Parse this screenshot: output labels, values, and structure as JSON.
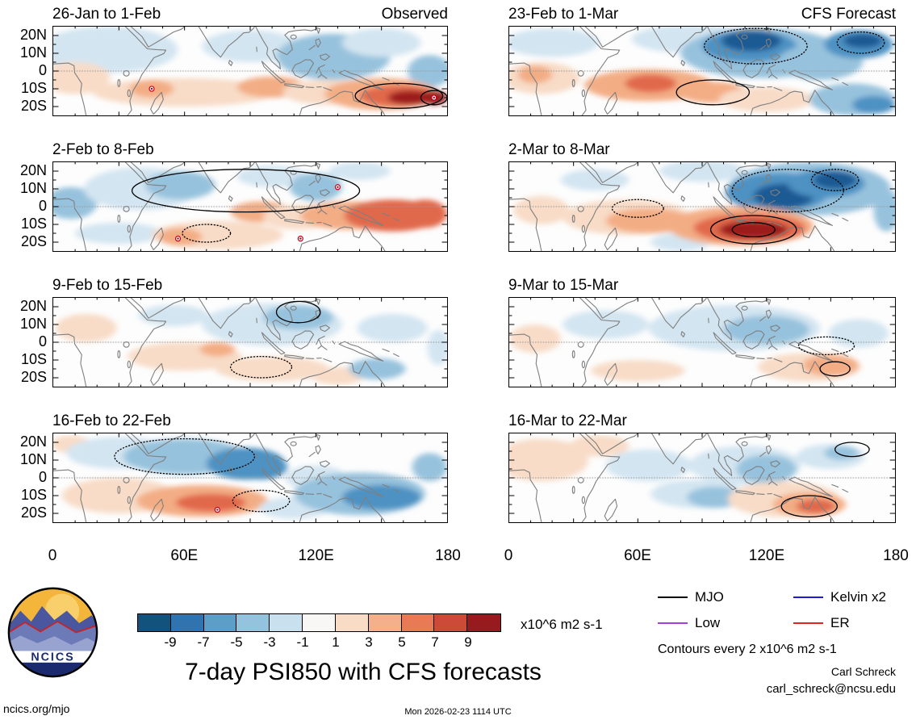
{
  "chart_data": {
    "type": "heatmap",
    "title": "7-day PSI850 with CFS forecasts",
    "units_label": "x10^6 m2 s-1",
    "contour_note": "Contours every 2 x10^6 m2 s-1",
    "columns": [
      {
        "label": "Observed"
      },
      {
        "label": "CFS Forecast"
      }
    ],
    "x_ticks": [
      "0",
      "60E",
      "120E",
      "180"
    ],
    "y_ticks": [
      "20N",
      "10N",
      "0",
      "10S",
      "20S"
    ],
    "lon_range": [
      0,
      180
    ],
    "lat_range": [
      -25,
      25
    ],
    "colorbar": {
      "levels": [
        "-9",
        "-7",
        "-5",
        "-3",
        "-1",
        "1",
        "3",
        "5",
        "7",
        "9"
      ],
      "colors": [
        "#14527e",
        "#3073ae",
        "#5d9ec9",
        "#94c4dd",
        "#c9e0ee",
        "#f8f7f6",
        "#f9dcc5",
        "#f3b08a",
        "#e87b55",
        "#cc4a38",
        "#971b1e"
      ]
    },
    "legend": [
      {
        "label": "MJO",
        "color": "#000000"
      },
      {
        "label": "Kelvin x2",
        "color": "#1b1bd8"
      },
      {
        "label": "Low",
        "color": "#a43ee0"
      },
      {
        "label": "ER",
        "color": "#e5231c"
      }
    ],
    "blob_colors": {
      "b1": "#d3e5f1",
      "b2": "#97c2dd",
      "b3": "#4d92c3",
      "b4": "#1b5a94",
      "r1": "#f8dcc7",
      "r2": "#f3ad85",
      "r3": "#e1694b",
      "r4": "#9c1b1e"
    },
    "panels": [
      {
        "title": "26-Jan to 1-Feb",
        "anomalies": [
          [
            25,
            12,
            32,
            13,
            "b1"
          ],
          [
            90,
            14,
            22,
            9,
            "b1"
          ],
          [
            128,
            8,
            26,
            13,
            "b2"
          ],
          [
            150,
            16,
            18,
            8,
            "b1"
          ],
          [
            172,
            0,
            10,
            9,
            "b2"
          ],
          [
            10,
            -4,
            16,
            9,
            "r1"
          ],
          [
            60,
            -12,
            42,
            8,
            "r1"
          ],
          [
            45,
            -10,
            10,
            5,
            "r2"
          ],
          [
            100,
            -9,
            16,
            6,
            "r2"
          ],
          [
            125,
            -12,
            20,
            7,
            "r1"
          ],
          [
            150,
            -13,
            26,
            9,
            "r2"
          ],
          [
            158,
            -14,
            18,
            6,
            "r3"
          ],
          [
            163,
            -15,
            10,
            4,
            "r4"
          ],
          [
            174,
            -15,
            6,
            4,
            "r4"
          ]
        ],
        "contours": [
          [
            158,
            -14,
            20,
            7,
            "solid"
          ],
          [
            174,
            -15,
            6,
            4,
            "solid"
          ]
        ],
        "markers": [
          [
            45,
            -10
          ],
          [
            174,
            -15
          ]
        ]
      },
      {
        "title": "23-Feb to 1-Mar",
        "anomalies": [
          [
            20,
            16,
            22,
            8,
            "b1"
          ],
          [
            85,
            18,
            28,
            8,
            "b1"
          ],
          [
            118,
            10,
            38,
            14,
            "b2"
          ],
          [
            112,
            14,
            22,
            9,
            "b3"
          ],
          [
            113,
            17,
            14,
            6,
            "b4"
          ],
          [
            145,
            5,
            20,
            10,
            "b2"
          ],
          [
            163,
            15,
            16,
            8,
            "b3"
          ],
          [
            165,
            17,
            9,
            4,
            "b4"
          ],
          [
            15,
            -4,
            18,
            9,
            "r1"
          ],
          [
            12,
            -2,
            8,
            5,
            "r2"
          ],
          [
            65,
            -8,
            30,
            9,
            "r2"
          ],
          [
            66,
            -7,
            12,
            5,
            "r3"
          ],
          [
            95,
            -12,
            16,
            6,
            "r2"
          ],
          [
            120,
            -16,
            22,
            7,
            "r1"
          ],
          [
            160,
            -16,
            20,
            9,
            "b2"
          ],
          [
            170,
            -19,
            10,
            5,
            "b3"
          ]
        ],
        "contours": [
          [
            115,
            14,
            24,
            10,
            "dashed"
          ],
          [
            164,
            16,
            11,
            6,
            "dashed"
          ],
          [
            95,
            -12,
            17,
            7,
            "solid"
          ]
        ],
        "markers": []
      },
      {
        "title": "2-Feb to 8-Feb",
        "anomalies": [
          [
            8,
            2,
            12,
            9,
            "b2"
          ],
          [
            40,
            10,
            26,
            12,
            "b1"
          ],
          [
            58,
            12,
            16,
            8,
            "b2"
          ],
          [
            100,
            17,
            16,
            6,
            "b1"
          ],
          [
            120,
            11,
            12,
            8,
            "b2"
          ],
          [
            140,
            20,
            14,
            5,
            "b1"
          ],
          [
            30,
            -15,
            20,
            6,
            "b1"
          ],
          [
            75,
            -16,
            30,
            8,
            "r1"
          ],
          [
            58,
            -17,
            10,
            5,
            "r2"
          ],
          [
            95,
            -3,
            14,
            6,
            "r2"
          ],
          [
            112,
            -6,
            16,
            7,
            "r1"
          ],
          [
            135,
            -5,
            22,
            8,
            "r2"
          ],
          [
            155,
            -5,
            22,
            9,
            "r3"
          ],
          [
            170,
            -4,
            10,
            8,
            "r3"
          ]
        ],
        "contours": [
          [
            88,
            9,
            52,
            12,
            "solid"
          ],
          [
            70,
            -15,
            11,
            5,
            "dashed"
          ]
        ],
        "markers": [
          [
            130,
            11
          ],
          [
            57,
            -18
          ],
          [
            113,
            -18
          ]
        ]
      },
      {
        "title": "2-Mar to 8-Mar",
        "anomalies": [
          [
            40,
            15,
            16,
            6,
            "b1"
          ],
          [
            90,
            20,
            20,
            6,
            "b1"
          ],
          [
            140,
            10,
            38,
            15,
            "b2"
          ],
          [
            125,
            8,
            24,
            11,
            "b3"
          ],
          [
            128,
            6,
            14,
            7,
            "b4"
          ],
          [
            148,
            13,
            18,
            8,
            "b3"
          ],
          [
            152,
            15,
            10,
            5,
            "b4"
          ],
          [
            15,
            -2,
            13,
            8,
            "r1"
          ],
          [
            55,
            -6,
            30,
            10,
            "r1"
          ],
          [
            65,
            -8,
            20,
            7,
            "r2"
          ],
          [
            80,
            -20,
            14,
            5,
            "b1"
          ],
          [
            108,
            -11,
            34,
            11,
            "r2"
          ],
          [
            112,
            -12,
            26,
            8,
            "r3"
          ],
          [
            114,
            -13,
            16,
            5,
            "r4"
          ],
          [
            176,
            -2,
            6,
            12,
            "b2"
          ]
        ],
        "contours": [
          [
            130,
            9,
            26,
            12,
            "dashed"
          ],
          [
            152,
            15,
            11,
            6,
            "dashed"
          ],
          [
            114,
            -13,
            20,
            8,
            "solid"
          ],
          [
            114,
            -13,
            10,
            4,
            "solid"
          ],
          [
            60,
            -1,
            12,
            5,
            "dashed"
          ]
        ],
        "markers": []
      },
      {
        "title": "9-Feb to 15-Feb",
        "anomalies": [
          [
            15,
            8,
            14,
            8,
            "r1"
          ],
          [
            55,
            15,
            16,
            6,
            "b1"
          ],
          [
            100,
            10,
            32,
            12,
            "b1"
          ],
          [
            112,
            14,
            16,
            7,
            "b2"
          ],
          [
            155,
            8,
            16,
            8,
            "b1"
          ],
          [
            176,
            -3,
            5,
            10,
            "b1"
          ],
          [
            60,
            -8,
            26,
            8,
            "r1"
          ],
          [
            75,
            -4,
            8,
            4,
            "r2"
          ],
          [
            100,
            -15,
            26,
            7,
            "r1"
          ],
          [
            130,
            -19,
            12,
            5,
            "r1"
          ],
          [
            148,
            -15,
            13,
            6,
            "b2"
          ]
        ],
        "contours": [
          [
            112,
            17,
            10,
            6,
            "solid"
          ],
          [
            95,
            -14,
            14,
            6,
            "dashed"
          ]
        ],
        "markers": []
      },
      {
        "title": "9-Mar to 15-Mar",
        "anomalies": [
          [
            12,
            2,
            12,
            8,
            "r1"
          ],
          [
            45,
            10,
            20,
            8,
            "b1"
          ],
          [
            105,
            8,
            40,
            13,
            "b1"
          ],
          [
            120,
            7,
            20,
            8,
            "b2"
          ],
          [
            163,
            5,
            14,
            8,
            "b1"
          ],
          [
            60,
            -16,
            22,
            6,
            "r1"
          ],
          [
            140,
            -14,
            24,
            8,
            "r1"
          ],
          [
            150,
            -13,
            13,
            6,
            "r2"
          ]
        ],
        "contours": [
          [
            148,
            -2,
            13,
            5,
            "dashed"
          ],
          [
            152,
            -15,
            7,
            4,
            "solid"
          ]
        ],
        "markers": []
      },
      {
        "title": "16-Feb to 22-Feb",
        "anomalies": [
          [
            8,
            19,
            9,
            5,
            "r1"
          ],
          [
            30,
            14,
            24,
            9,
            "b1"
          ],
          [
            60,
            12,
            28,
            10,
            "b2"
          ],
          [
            88,
            8,
            18,
            9,
            "b3"
          ],
          [
            95,
            6,
            12,
            7,
            "b3"
          ],
          [
            120,
            0,
            14,
            7,
            "b1"
          ],
          [
            30,
            -10,
            26,
            10,
            "r1"
          ],
          [
            68,
            -13,
            30,
            9,
            "r2"
          ],
          [
            72,
            -14,
            16,
            5,
            "r3"
          ],
          [
            110,
            -17,
            16,
            6,
            "b1"
          ],
          [
            140,
            -9,
            30,
            12,
            "b2"
          ],
          [
            150,
            -11,
            18,
            7,
            "b3"
          ],
          [
            172,
            6,
            8,
            8,
            "b2"
          ]
        ],
        "contours": [
          [
            60,
            12,
            32,
            10,
            "dashed"
          ],
          [
            95,
            -13,
            13,
            6,
            "dashed"
          ]
        ],
        "markers": [
          [
            75,
            -18
          ]
        ]
      },
      {
        "title": "16-Mar to 22-Mar",
        "anomalies": [
          [
            15,
            10,
            22,
            12,
            "r1"
          ],
          [
            42,
            18,
            14,
            6,
            "r1"
          ],
          [
            65,
            7,
            20,
            9,
            "b1"
          ],
          [
            110,
            7,
            26,
            11,
            "b1"
          ],
          [
            120,
            5,
            14,
            8,
            "b2"
          ],
          [
            150,
            12,
            16,
            7,
            "b1"
          ],
          [
            155,
            14,
            8,
            4,
            "b2"
          ],
          [
            88,
            -9,
            22,
            8,
            "b1"
          ],
          [
            96,
            -11,
            13,
            6,
            "b2"
          ],
          [
            128,
            -12,
            26,
            10,
            "r1"
          ],
          [
            140,
            -15,
            17,
            7,
            "r2"
          ],
          [
            143,
            -16,
            9,
            4,
            "r3"
          ]
        ],
        "contours": [
          [
            160,
            16,
            8,
            4,
            "solid"
          ],
          [
            140,
            -16,
            13,
            6,
            "solid"
          ]
        ],
        "markers": []
      }
    ]
  },
  "credits": {
    "logo_text": "NCICS",
    "author": "Carl Schreck",
    "email": "carl_schreck@ncsu.edu",
    "site": "ncics.org/mjo",
    "timestamp": "Mon 2026-02-23 1114 UTC"
  }
}
